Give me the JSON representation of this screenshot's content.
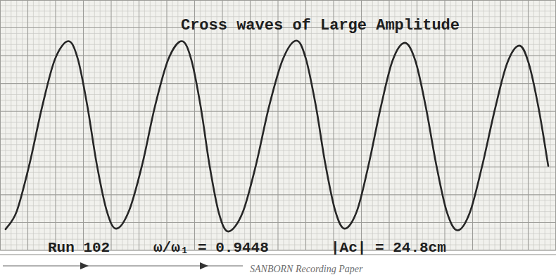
{
  "chart_data": {
    "type": "line",
    "title": "Cross waves of Large Amplitude",
    "annotations": [
      "Run 102",
      "ω/ω₁ = 0.9448",
      "|Ac| = 24.8cm",
      "SANBORN Recording Paper"
    ],
    "x": [
      1.0,
      3.0,
      5.3,
      7.6,
      9.9,
      12.3,
      14.0,
      15.7,
      17.4,
      19.2,
      20.9,
      23.2,
      25.6,
      27.9,
      30.3,
      32.7,
      34.4,
      36.1,
      37.7,
      39.4,
      41.1,
      43.6,
      46.0,
      48.4,
      50.9,
      53.3,
      55.0,
      56.8,
      58.5,
      60.3,
      62.0,
      64.2,
      66.3,
      68.5,
      70.6,
      72.8,
      74.7,
      76.6,
      78.5,
      80.4,
      82.3,
      84.5,
      86.7,
      89.0,
      91.2,
      93.4,
      95.1,
      96.9,
      98.6
    ],
    "series": [
      {
        "color": "#262626",
        "values": [
          3.8,
          7.0,
          15.5,
          25.9,
          34.4,
          37.6,
          34.4,
          26.0,
          15.5,
          7.1,
          3.9,
          7.1,
          15.5,
          26.0,
          34.4,
          37.6,
          34.3,
          25.8,
          15.2,
          6.6,
          3.4,
          6.7,
          15.2,
          25.9,
          34.4,
          37.7,
          34.5,
          26.0,
          15.6,
          7.1,
          3.9,
          7.1,
          15.4,
          25.8,
          34.1,
          37.3,
          34.1,
          25.7,
          15.2,
          6.8,
          3.6,
          6.8,
          15.1,
          25.3,
          33.6,
          36.8,
          33.6,
          25.4,
          15.2
        ]
      }
    ],
    "xlim": [
      0,
      100
    ],
    "ylim": [
      0,
      45
    ],
    "xticks": [
      0,
      5,
      10,
      15,
      20,
      25,
      30,
      35,
      40,
      45,
      50,
      55,
      60,
      65,
      70,
      75,
      80,
      85,
      90,
      95,
      100
    ],
    "yticks": [
      0,
      5,
      10,
      15,
      20,
      25,
      30,
      35,
      40,
      45
    ],
    "grid": true,
    "tick_labels": false
  }
}
